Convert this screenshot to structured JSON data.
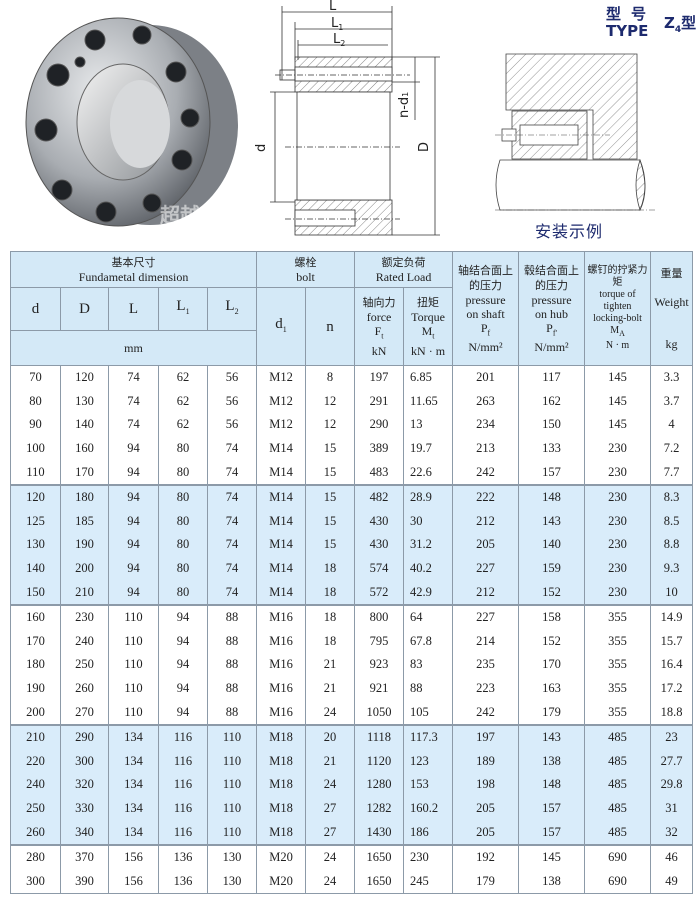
{
  "type_header": {
    "cn": "型号",
    "en": "TYPE",
    "model": "Z",
    "model_sub": "4",
    "model_suffix": "型"
  },
  "install_label": "安装示例",
  "drawing_labels": {
    "L": "L",
    "L1": "L",
    "L1_sub": "1",
    "L2": "L",
    "L2_sub": "2",
    "d": "d",
    "D": "D",
    "nd1": "n-d",
    "nd1_sub": "1"
  },
  "photo_watermark": "超越",
  "colors": {
    "header_bg": "#d4e9f7",
    "band_bg": "#d9ecfa",
    "title_color": "#1d2a6e"
  },
  "table": {
    "header": {
      "fundamental_cn": "基本尺寸",
      "fundamental_en": "Fundametal dimension",
      "bolt_cn": "螺栓",
      "bolt_en": "bolt",
      "rated_cn": "额定负荷",
      "rated_en": "Rated Load",
      "d": "d",
      "D": "D",
      "L": "L",
      "L1": "L",
      "L1_sub": "1",
      "L2": "L",
      "L2_sub": "2",
      "mm": "mm",
      "d1": "d",
      "d1_sub": "1",
      "n": "n",
      "force_cn": "轴向力",
      "force_en": "force",
      "force_sym": "F",
      "force_sub": "t",
      "force_unit": "kN",
      "torque_cn": "扭矩",
      "torque_en": "Torque",
      "torque_sym": "M",
      "torque_sub": "t",
      "torque_unit": "kN · m",
      "pshaft_cn": "轴结合面上的压力",
      "pshaft_en1": "pressure",
      "pshaft_en2": "on shaft",
      "pshaft_sym": "P",
      "pshaft_sub": "f",
      "pshaft_unit": "N/mm²",
      "phub_cn": "毂结合面上的压力",
      "phub_en1": "pressure",
      "phub_en2": "on hub",
      "phub_sym": "P",
      "phub_sub": "f'",
      "phub_unit": "N/mm²",
      "tight_cn": "螺钉的拧紧力矩",
      "tight_en1": "torque of",
      "tight_en2": "tighten",
      "tight_en3": "locking-bolt",
      "tight_sym": "M",
      "tight_sub": "A",
      "tight_unit": "N · m",
      "weight_cn": "重量",
      "weight_en": "Weight",
      "weight_unit": "kg"
    },
    "rows": [
      [
        "70",
        "120",
        "74",
        "62",
        "56",
        "M12",
        "8",
        "197",
        "6.85",
        "201",
        "117",
        "145",
        "3.3"
      ],
      [
        "80",
        "130",
        "74",
        "62",
        "56",
        "M12",
        "12",
        "291",
        "11.65",
        "263",
        "162",
        "145",
        "3.7"
      ],
      [
        "90",
        "140",
        "74",
        "62",
        "56",
        "M12",
        "12",
        "290",
        "13",
        "234",
        "150",
        "145",
        "4"
      ],
      [
        "100",
        "160",
        "94",
        "80",
        "74",
        "M14",
        "15",
        "389",
        "19.7",
        "213",
        "133",
        "230",
        "7.2"
      ],
      [
        "110",
        "170",
        "94",
        "80",
        "74",
        "M14",
        "15",
        "483",
        "22.6",
        "242",
        "157",
        "230",
        "7.7"
      ],
      [
        "120",
        "180",
        "94",
        "80",
        "74",
        "M14",
        "15",
        "482",
        "28.9",
        "222",
        "148",
        "230",
        "8.3"
      ],
      [
        "125",
        "185",
        "94",
        "80",
        "74",
        "M14",
        "15",
        "430",
        "30",
        "212",
        "143",
        "230",
        "8.5"
      ],
      [
        "130",
        "190",
        "94",
        "80",
        "74",
        "M14",
        "15",
        "430",
        "31.2",
        "205",
        "140",
        "230",
        "8.8"
      ],
      [
        "140",
        "200",
        "94",
        "80",
        "74",
        "M14",
        "18",
        "574",
        "40.2",
        "227",
        "159",
        "230",
        "9.3"
      ],
      [
        "150",
        "210",
        "94",
        "80",
        "74",
        "M14",
        "18",
        "572",
        "42.9",
        "212",
        "152",
        "230",
        "10"
      ],
      [
        "160",
        "230",
        "110",
        "94",
        "88",
        "M16",
        "18",
        "800",
        "64",
        "227",
        "158",
        "355",
        "14.9"
      ],
      [
        "170",
        "240",
        "110",
        "94",
        "88",
        "M16",
        "18",
        "795",
        "67.8",
        "214",
        "152",
        "355",
        "15.7"
      ],
      [
        "180",
        "250",
        "110",
        "94",
        "88",
        "M16",
        "21",
        "923",
        "83",
        "235",
        "170",
        "355",
        "16.4"
      ],
      [
        "190",
        "260",
        "110",
        "94",
        "88",
        "M16",
        "21",
        "921",
        "88",
        "223",
        "163",
        "355",
        "17.2"
      ],
      [
        "200",
        "270",
        "110",
        "94",
        "88",
        "M16",
        "24",
        "1050",
        "105",
        "242",
        "179",
        "355",
        "18.8"
      ],
      [
        "210",
        "290",
        "134",
        "116",
        "110",
        "M18",
        "20",
        "1118",
        "117.3",
        "197",
        "143",
        "485",
        "23"
      ],
      [
        "220",
        "300",
        "134",
        "116",
        "110",
        "M18",
        "21",
        "1120",
        "123",
        "189",
        "138",
        "485",
        "27.7"
      ],
      [
        "240",
        "320",
        "134",
        "116",
        "110",
        "M18",
        "24",
        "1280",
        "153",
        "198",
        "148",
        "485",
        "29.8"
      ],
      [
        "250",
        "330",
        "134",
        "116",
        "110",
        "M18",
        "27",
        "1282",
        "160.2",
        "205",
        "157",
        "485",
        "31"
      ],
      [
        "260",
        "340",
        "134",
        "116",
        "110",
        "M18",
        "27",
        "1430",
        "186",
        "205",
        "157",
        "485",
        "32"
      ],
      [
        "280",
        "370",
        "156",
        "136",
        "130",
        "M20",
        "24",
        "1650",
        "230",
        "192",
        "145",
        "690",
        "46"
      ],
      [
        "300",
        "390",
        "156",
        "136",
        "130",
        "M20",
        "24",
        "1650",
        "245",
        "179",
        "138",
        "690",
        "49"
      ]
    ]
  }
}
